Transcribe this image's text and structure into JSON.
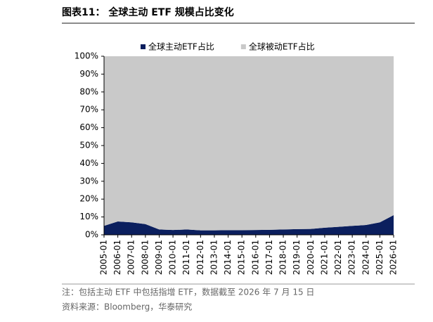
{
  "chart_data": {
    "type": "stacked-area",
    "title": "图表11： 全球主动 ETF 规模占比变化",
    "categories": [
      "2005-01",
      "2006-01",
      "2007-01",
      "2008-01",
      "2009-01",
      "2010-01",
      "2011-01",
      "2012-01",
      "2013-01",
      "2014-01",
      "2015-01",
      "2016-01",
      "2017-01",
      "2018-01",
      "2019-01",
      "2020-01",
      "2021-01",
      "2022-01",
      "2023-01",
      "2024-01",
      "2025-01",
      "2026-01"
    ],
    "series": [
      {
        "name": "全球主动ETF占比",
        "color": "#0b1f5e",
        "values": [
          5,
          7.5,
          7,
          6,
          3,
          2.7,
          3,
          2.5,
          2.5,
          2.6,
          2.6,
          2.7,
          2.8,
          3,
          3.2,
          3.3,
          4,
          4.5,
          5,
          5.5,
          7,
          11
        ]
      },
      {
        "name": "全球被动ETF占比",
        "color": "#c9c9c9",
        "values": [
          95,
          92.5,
          93,
          94,
          97,
          97.3,
          97,
          97.5,
          97.5,
          97.4,
          97.4,
          97.3,
          97.2,
          97,
          96.8,
          96.7,
          96,
          95.5,
          95,
          94.5,
          93,
          89
        ]
      }
    ],
    "ylim": [
      0,
      100
    ],
    "yticks": [
      {
        "value": 0,
        "label": "0%"
      },
      {
        "value": 10,
        "label": "10%"
      },
      {
        "value": 20,
        "label": "20%"
      },
      {
        "value": 30,
        "label": "30%"
      },
      {
        "value": 40,
        "label": "40%"
      },
      {
        "value": 50,
        "label": "50%"
      },
      {
        "value": 60,
        "label": "60%"
      },
      {
        "value": 70,
        "label": "70%"
      },
      {
        "value": 80,
        "label": "80%"
      },
      {
        "value": 90,
        "label": "90%"
      },
      {
        "value": 100,
        "label": "100%"
      }
    ],
    "notes": [
      "注：包括主动 ETF 中包括指增 ETF，数据截至 2026 年 7 月 15 日",
      "资料来源：Bloomberg，华泰研究"
    ]
  }
}
